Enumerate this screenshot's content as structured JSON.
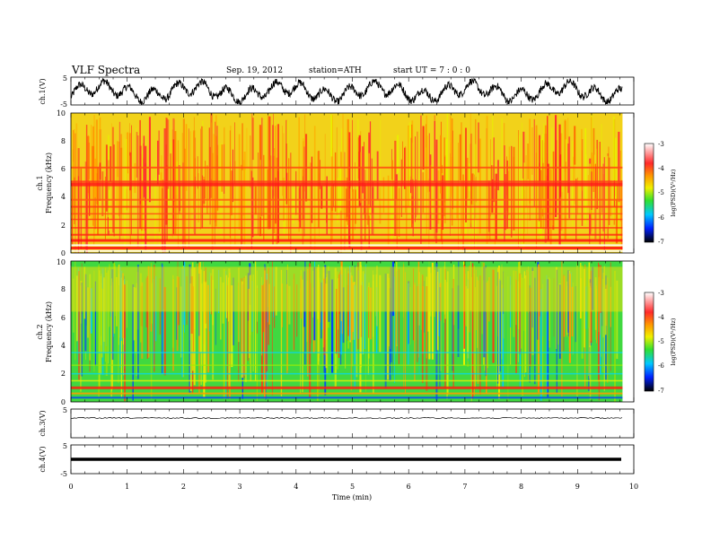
{
  "header": {
    "title": "VLF  Spectra",
    "date": "Sep. 19, 2012",
    "station": "station=ATH",
    "start": "start  UT  =    7  : 0  : 0"
  },
  "chart_data": [
    {
      "type": "line",
      "ylabel": "ch.1(V)",
      "ylim": [
        -5,
        5
      ],
      "yticks": [
        "5",
        "-5"
      ],
      "xlim": [
        0,
        10
      ],
      "data_end_min": 9.8,
      "style": "dense oscillating waveform, amplitude near full scale"
    },
    {
      "type": "heatmap",
      "ylabel_line1": "ch.1",
      "ylabel_line2": "Frequency  (kHz)",
      "ylim": [
        0,
        10
      ],
      "yticks": [
        "0",
        "2",
        "4",
        "6",
        "8",
        "10"
      ],
      "colorbar_label": "log(PSD)(V²/Hz)",
      "colorbar_ticks": [
        "-3",
        "-4",
        "-5",
        "-6",
        "-7"
      ],
      "color_range": [
        -7,
        -3
      ],
      "dominant_levels": "mostly -4 to -4.7 (yellow/orange/red), strong red bands near 4.9 kHz and below 1 kHz"
    },
    {
      "type": "heatmap",
      "ylabel_line1": "ch.2",
      "ylabel_line2": "Frequency  (kHz)",
      "ylim": [
        0,
        10
      ],
      "yticks": [
        "0",
        "2",
        "4",
        "6",
        "8",
        "10"
      ],
      "colorbar_label": "log(PSD)(V²/Hz)",
      "colorbar_ticks": [
        "-3",
        "-4",
        "-5",
        "-6",
        "-7"
      ],
      "color_range": [
        -7,
        -3
      ],
      "dominant_levels": "upper band -4 to -4.7 (yellow/orange), 0-5 kHz mostly -5 (green), red line near 1 kHz"
    },
    {
      "type": "line",
      "ylabel": "ch.3(V)",
      "ylim": [
        -5,
        5
      ],
      "yticks": [
        "5"
      ],
      "level": 0,
      "style": "thin near-flat trace"
    },
    {
      "type": "line",
      "ylabel": "ch.4(V)",
      "ylim": [
        -5,
        5
      ],
      "yticks": [
        "5",
        "-5"
      ],
      "level": 0,
      "style": "thick near-flat trace"
    }
  ],
  "xaxis": {
    "label": "Time  (min)",
    "ticks": [
      "0",
      "1",
      "2",
      "3",
      "4",
      "5",
      "6",
      "7",
      "8",
      "9",
      "10"
    ]
  },
  "colors": {
    "ink": "#000000",
    "background": "#ffffff"
  }
}
